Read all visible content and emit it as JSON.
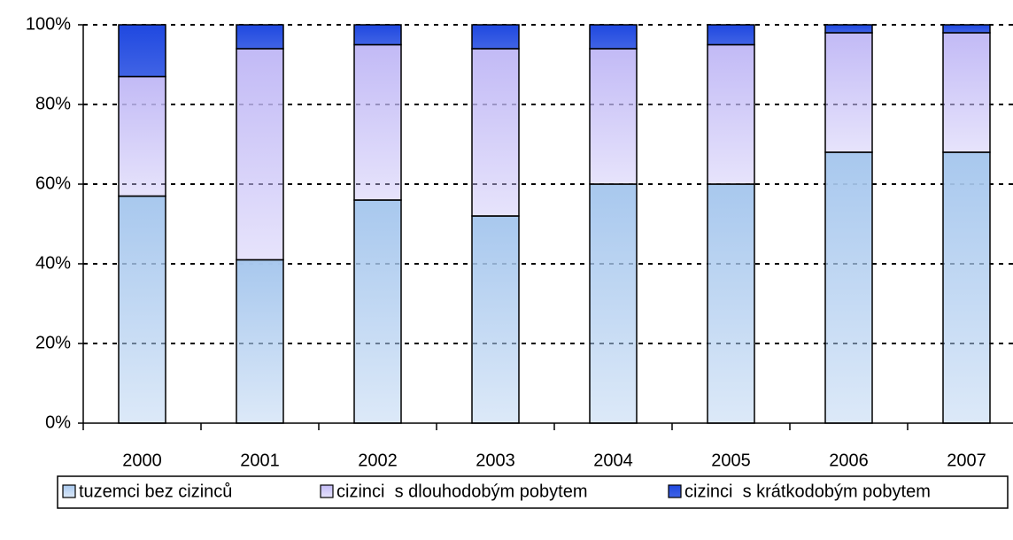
{
  "chart_data": {
    "type": "stacked-bar-100",
    "categories": [
      "2000",
      "2001",
      "2002",
      "2003",
      "2004",
      "2005",
      "2006",
      "2007"
    ],
    "series": [
      {
        "name": "tuzemci bez cizinců",
        "color": "#a8c8ee",
        "values": [
          57,
          41,
          56,
          52,
          60,
          60,
          68,
          68
        ]
      },
      {
        "name": "cizinci  s dlouhodobým pobytem",
        "color": "#c2baf6",
        "values": [
          30,
          53,
          39,
          42,
          34,
          35,
          30,
          30
        ]
      },
      {
        "name": "cizinci  s krátkodobým pobytem",
        "color": "#1f48e0",
        "values": [
          13,
          6,
          5,
          6,
          6,
          5,
          2,
          2
        ]
      }
    ],
    "ylim": [
      0,
      100
    ],
    "yticks": [
      {
        "value": 0,
        "label": "0%"
      },
      {
        "value": 20,
        "label": "20%"
      },
      {
        "value": 40,
        "label": "40%"
      },
      {
        "value": 60,
        "label": "60%"
      },
      {
        "value": 80,
        "label": "80%"
      },
      {
        "value": 100,
        "label": "100%"
      }
    ],
    "grid": true
  }
}
